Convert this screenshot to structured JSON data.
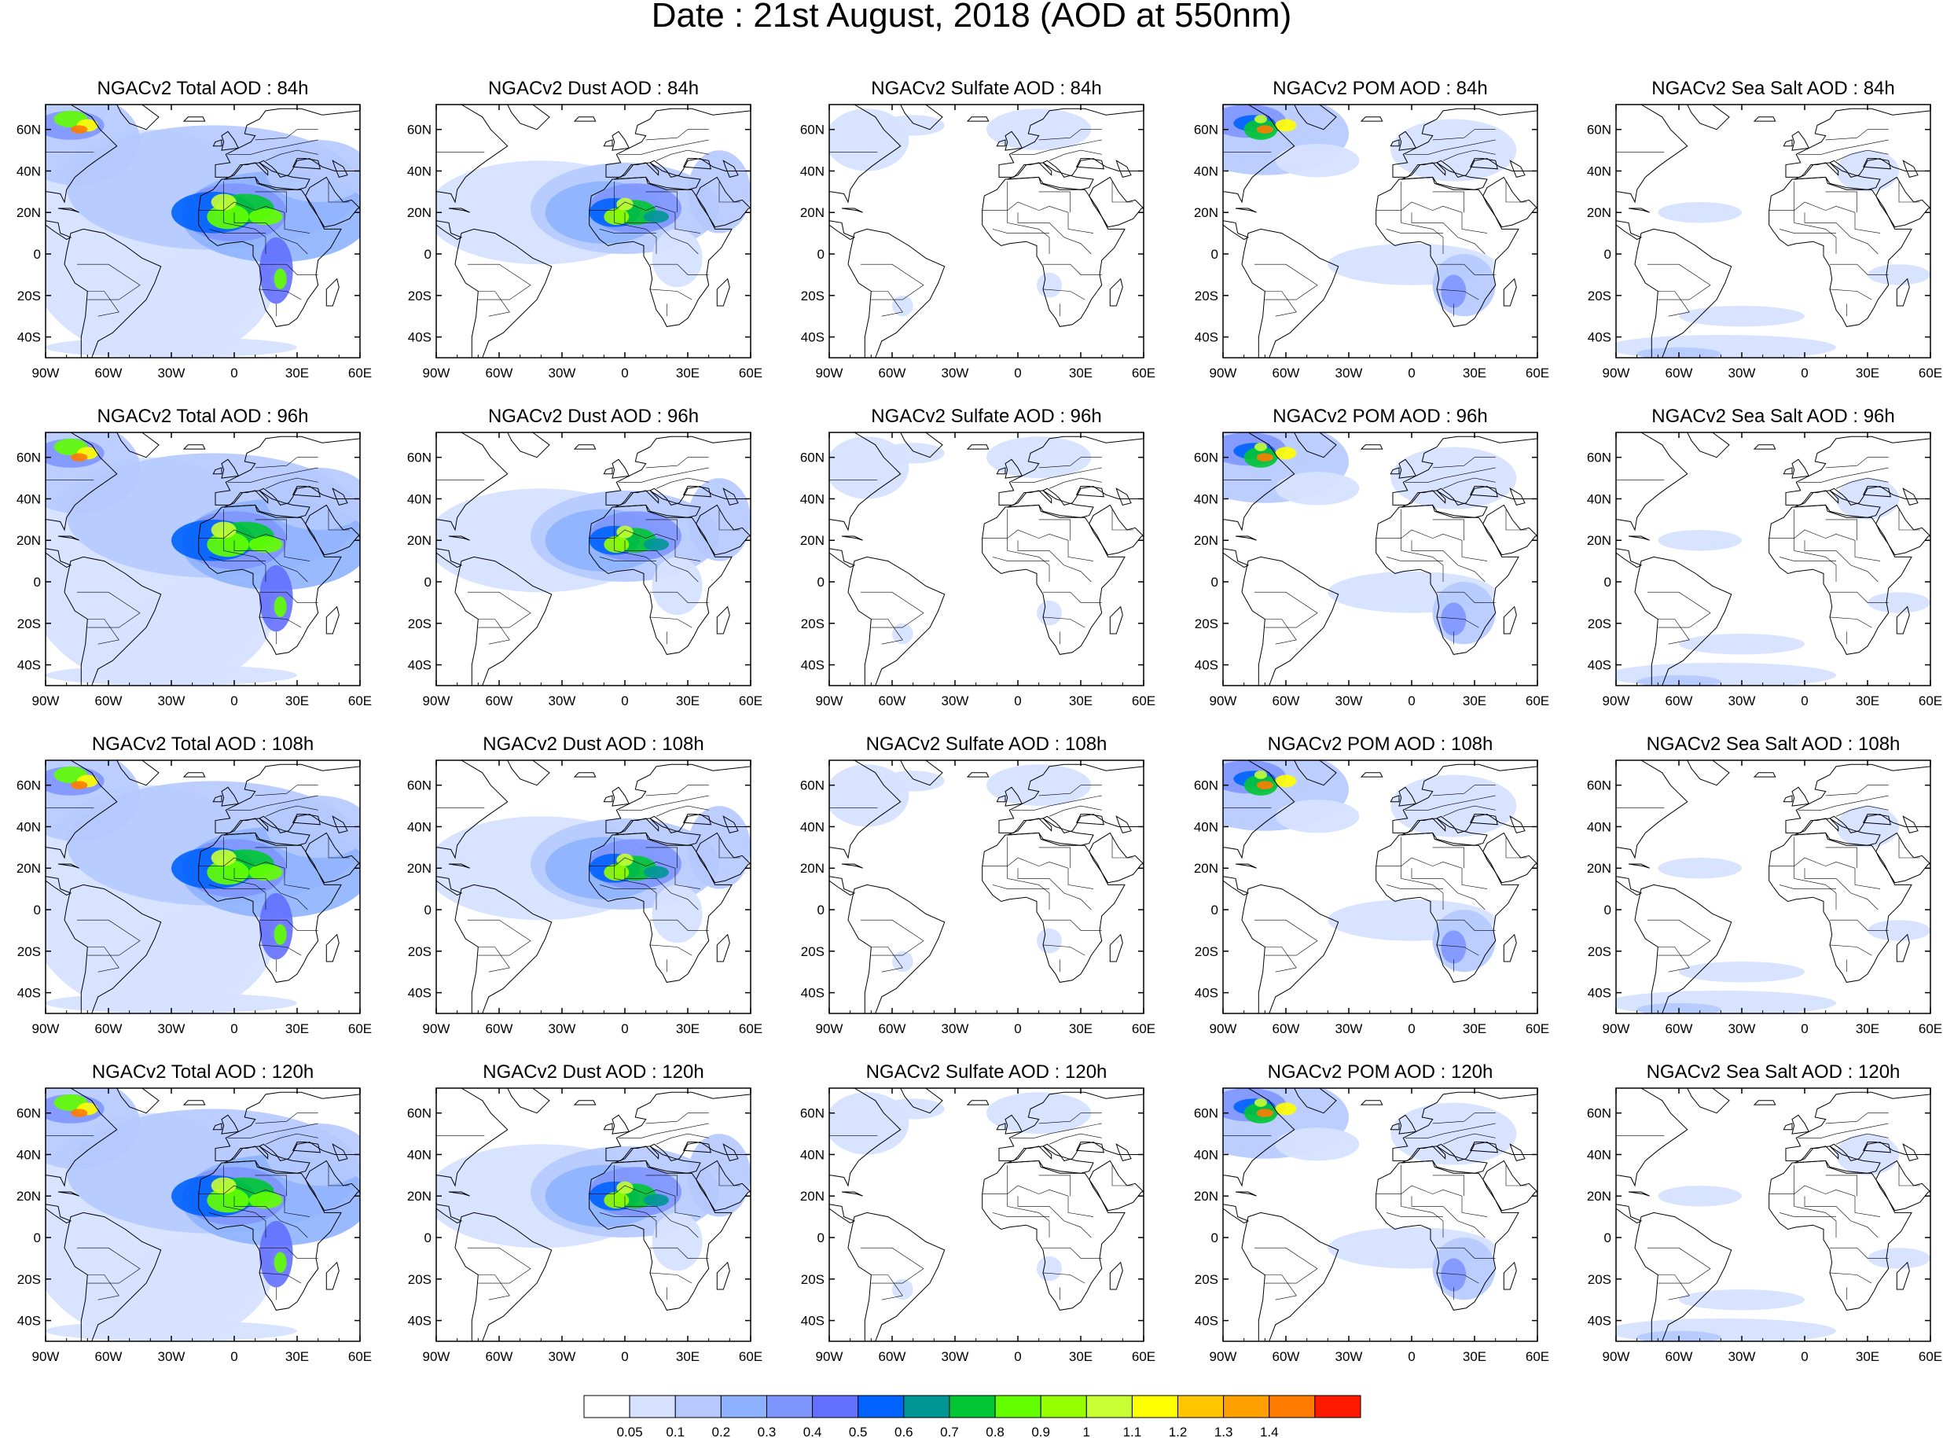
{
  "title": "Date : 21st August, 2018 (AOD at 550nm)",
  "rows": [
    {
      "hour": "84h",
      "panels": [
        {
          "title": "NGACv2 Total AOD : 84h",
          "species": "total"
        },
        {
          "title": "NGACv2 Dust AOD : 84h",
          "species": "dust"
        },
        {
          "title": "NGACv2 Sulfate AOD : 84h",
          "species": "sulfate"
        },
        {
          "title": "NGACv2 POM AOD : 84h",
          "species": "pom"
        },
        {
          "title": "NGACv2 Sea Salt AOD : 84h",
          "species": "seasalt"
        }
      ]
    },
    {
      "hour": "96h",
      "panels": [
        {
          "title": "NGACv2 Total AOD : 96h",
          "species": "total"
        },
        {
          "title": "NGACv2 Dust AOD : 96h",
          "species": "dust"
        },
        {
          "title": "NGACv2 Sulfate AOD : 96h",
          "species": "sulfate"
        },
        {
          "title": "NGACv2 POM AOD : 96h",
          "species": "pom"
        },
        {
          "title": "NGACv2 Sea Salt AOD : 96h",
          "species": "seasalt"
        }
      ]
    },
    {
      "hour": "108h",
      "panels": [
        {
          "title": "NGACv2 Total AOD : 108h",
          "species": "total"
        },
        {
          "title": "NGACv2 Dust AOD : 108h",
          "species": "dust"
        },
        {
          "title": "NGACv2 Sulfate AOD : 108h",
          "species": "sulfate"
        },
        {
          "title": "NGACv2 POM AOD : 108h",
          "species": "pom"
        },
        {
          "title": "NGACv2 Sea Salt AOD : 108h",
          "species": "seasalt"
        }
      ]
    },
    {
      "hour": "120h",
      "panels": [
        {
          "title": "NGACv2 Total AOD : 120h",
          "species": "total"
        },
        {
          "title": "NGACv2 Dust AOD : 120h",
          "species": "dust"
        },
        {
          "title": "NGACv2 Sulfate AOD : 120h",
          "species": "sulfate"
        },
        {
          "title": "NGACv2 POM AOD : 120h",
          "species": "pom"
        },
        {
          "title": "NGACv2 Sea Salt  AOD : 120h",
          "species": "seasalt"
        }
      ]
    }
  ],
  "map_extent": {
    "lon_min": -90,
    "lon_max": 60,
    "lat_min": -50,
    "lat_max": 72
  },
  "x_ticks": [
    {
      "value": -90,
      "label": "90W"
    },
    {
      "value": -60,
      "label": "60W"
    },
    {
      "value": -30,
      "label": "30W"
    },
    {
      "value": 0,
      "label": "0"
    },
    {
      "value": 30,
      "label": "30E"
    },
    {
      "value": 60,
      "label": "60E"
    }
  ],
  "y_ticks": [
    {
      "value": 60,
      "label": "60N"
    },
    {
      "value": 40,
      "label": "40N"
    },
    {
      "value": 20,
      "label": "20N"
    },
    {
      "value": 0,
      "label": "0"
    },
    {
      "value": -20,
      "label": "20S"
    },
    {
      "value": -40,
      "label": "40S"
    }
  ],
  "colorbar": {
    "labels": [
      "0.05",
      "0.1",
      "0.2",
      "0.3",
      "0.4",
      "0.5",
      "0.6",
      "0.7",
      "0.8",
      "0.9",
      "1",
      "1.1",
      "1.2",
      "1.3",
      "1.4"
    ],
    "colors": [
      "#ffffff",
      "#d6e2ff",
      "#b5c9ff",
      "#8eb2ff",
      "#7f96ff",
      "#6370ff",
      "#0063ff",
      "#009696",
      "#00c633",
      "#63ff00",
      "#96ff00",
      "#c6ff33",
      "#ffff00",
      "#ffc600",
      "#ffa000",
      "#ff7c00",
      "#ff1900"
    ]
  }
}
